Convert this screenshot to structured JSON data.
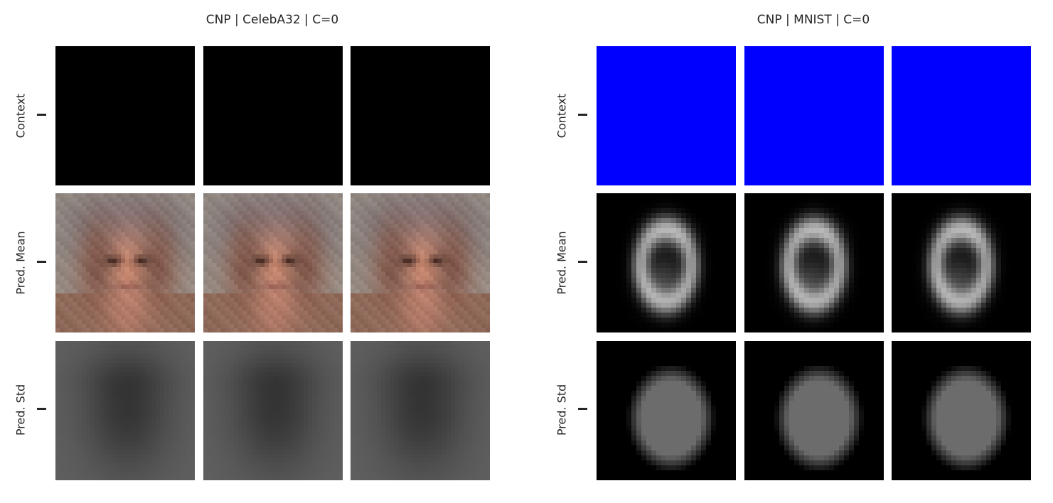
{
  "panels": [
    {
      "title": "CNP | CelebA32 | C=0",
      "kind": "celeba",
      "context_color": "#000000",
      "rows": [
        "Context",
        "Pred. Mean",
        "Pred. Std"
      ]
    },
    {
      "title": "CNP | MNIST | C=0",
      "kind": "mnist",
      "context_color": "#0000ff",
      "rows": [
        "Context",
        "Pred. Mean",
        "Pred. Std"
      ]
    }
  ]
}
